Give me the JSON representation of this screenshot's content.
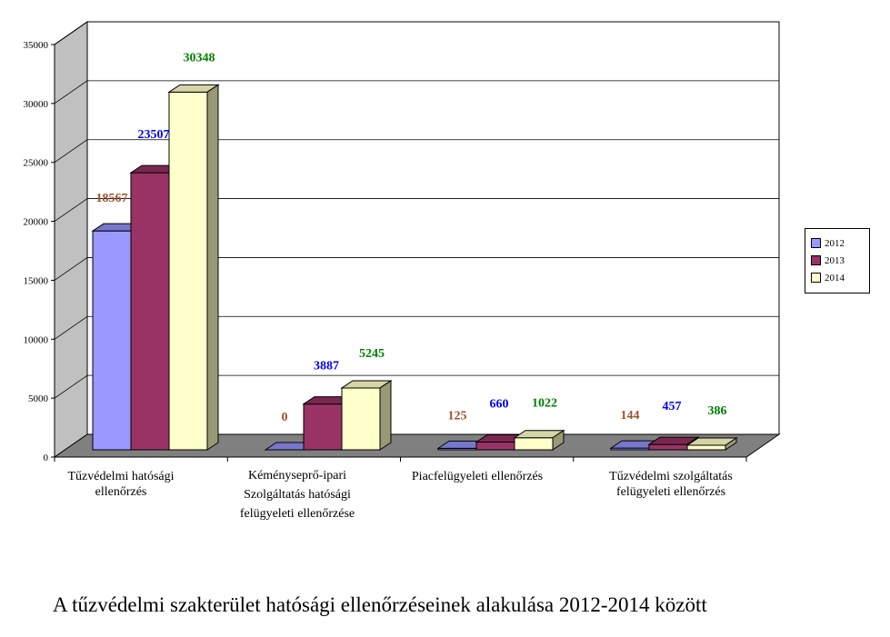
{
  "caption": "A tűzvédelmi szakterület hatósági ellenőrzéseinek alakulása 2012-2014 között",
  "chart_data": {
    "type": "bar",
    "three_d": true,
    "categories": [
      [
        "Tűzvédelmi hatósági",
        "ellenőrzés"
      ],
      [
        "Kéményseprő-ipari",
        "Szolgáltatás hatósági",
        "felügyeleti ellenőrzése"
      ],
      [
        "Piacfelügyeleti ellenőrzés"
      ],
      [
        "Tűzvédelmi szolgáltatás",
        "felügyeleti ellenőrzés"
      ]
    ],
    "series": [
      {
        "name": "2012",
        "values": [
          18567,
          0,
          125,
          144
        ],
        "color": "#9999ff",
        "top_color": "#7777cc",
        "side_color": "#6666aa",
        "label_color": "#a0522d"
      },
      {
        "name": "2013",
        "values": [
          23507,
          3887,
          660,
          457
        ],
        "color": "#993366",
        "top_color": "#7a2850",
        "side_color": "#5c1e3c",
        "label_color": "#0000ff"
      },
      {
        "name": "2014",
        "values": [
          30348,
          5245,
          1022,
          386
        ],
        "color": "#ffffcc",
        "top_color": "#d4d4a6",
        "side_color": "#999977",
        "label_color": "#008000"
      }
    ],
    "ylim": [
      0,
      35000
    ],
    "yticks": [
      0,
      5000,
      10000,
      15000,
      20000,
      25000,
      30000,
      35000
    ],
    "grid": true,
    "legend_position": "right"
  }
}
